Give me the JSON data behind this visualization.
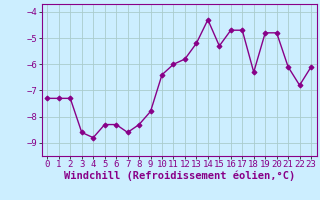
{
  "x": [
    0,
    1,
    2,
    3,
    4,
    5,
    6,
    7,
    8,
    9,
    10,
    11,
    12,
    13,
    14,
    15,
    16,
    17,
    18,
    19,
    20,
    21,
    22,
    23
  ],
  "y": [
    -7.3,
    -7.3,
    -7.3,
    -8.6,
    -8.8,
    -8.3,
    -8.3,
    -8.6,
    -8.3,
    -7.8,
    -6.4,
    -6.0,
    -5.8,
    -5.2,
    -4.3,
    -5.3,
    -4.7,
    -4.7,
    -6.3,
    -4.8,
    -4.8,
    -6.1,
    -6.8,
    -6.1
  ],
  "line_color": "#880088",
  "marker": "D",
  "bg_color": "#cceeff",
  "grid_color": "#aacccc",
  "xlabel": "Windchill (Refroidissement éolien,°C)",
  "ylim": [
    -9.5,
    -3.7
  ],
  "xlim": [
    -0.5,
    23.5
  ],
  "yticks": [
    -9,
    -8,
    -7,
    -6,
    -5,
    -4
  ],
  "xticks": [
    0,
    1,
    2,
    3,
    4,
    5,
    6,
    7,
    8,
    9,
    10,
    11,
    12,
    13,
    14,
    15,
    16,
    17,
    18,
    19,
    20,
    21,
    22,
    23
  ],
  "tick_fontsize": 6.5,
  "xlabel_fontsize": 7.5,
  "line_width": 1.0,
  "marker_size": 2.5
}
